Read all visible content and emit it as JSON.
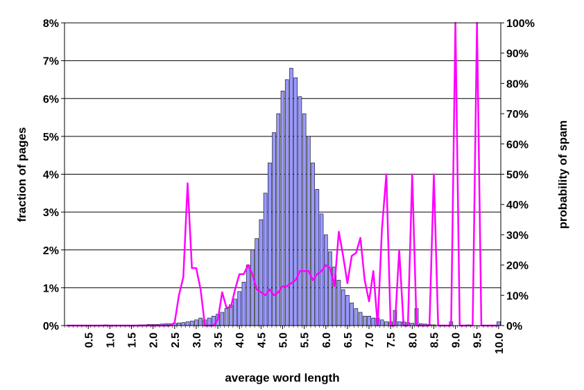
{
  "chart_data": {
    "type": "bar",
    "title": "",
    "xlabel": "average word length",
    "ylabel": "fraction of pages",
    "ylabel_right": "probability of spam",
    "ylim": [
      0,
      8
    ],
    "ylim_right": [
      0,
      100
    ],
    "xlim": [
      0.0,
      10.0
    ],
    "x_step": 0.1,
    "grid": true,
    "legend": "none",
    "x_ticks": [
      "0.5",
      "1.0",
      "1.5",
      "2.0",
      "2.5",
      "3.0",
      "3.5",
      "4.0",
      "4.5",
      "5.0",
      "5.5",
      "6.0",
      "6.5",
      "7.0",
      "7.5",
      "8.0",
      "8.5",
      "9.0",
      "9.5",
      "10.0"
    ],
    "y_ticks": [
      "0%",
      "1%",
      "2%",
      "3%",
      "4%",
      "5%",
      "6%",
      "7%",
      "8%"
    ],
    "y_ticks_right": [
      "0%",
      "10%",
      "20%",
      "30%",
      "40%",
      "50%",
      "60%",
      "70%",
      "80%",
      "90%",
      "100%"
    ],
    "series": [
      {
        "kind": "bar",
        "axis": "left",
        "unit": "%",
        "color": "#9999ff",
        "x": [
          0.9,
          1.7,
          1.8,
          1.9,
          2.0,
          2.1,
          2.2,
          2.3,
          2.4,
          2.5,
          2.6,
          2.7,
          2.8,
          2.9,
          3.0,
          3.1,
          3.2,
          3.3,
          3.4,
          3.5,
          3.6,
          3.7,
          3.8,
          3.9,
          4.0,
          4.1,
          4.2,
          4.3,
          4.4,
          4.5,
          4.6,
          4.7,
          4.8,
          4.9,
          5.0,
          5.1,
          5.2,
          5.3,
          5.4,
          5.5,
          5.6,
          5.7,
          5.8,
          5.9,
          6.0,
          6.1,
          6.2,
          6.3,
          6.4,
          6.5,
          6.6,
          6.7,
          6.8,
          6.9,
          7.0,
          7.1,
          7.2,
          7.3,
          7.4,
          7.5,
          7.6,
          7.7,
          7.8,
          7.9,
          8.0,
          8.1,
          8.2,
          8.3,
          8.4,
          8.5,
          8.9,
          9.3,
          10.0
        ],
        "values": [
          0.02,
          0.02,
          0.02,
          0.03,
          0.03,
          0.03,
          0.04,
          0.05,
          0.05,
          0.06,
          0.07,
          0.08,
          0.1,
          0.12,
          0.15,
          0.2,
          0.15,
          0.2,
          0.25,
          0.3,
          0.35,
          0.45,
          0.55,
          0.7,
          0.9,
          1.15,
          1.6,
          2.0,
          2.3,
          2.8,
          3.5,
          4.3,
          5.1,
          5.6,
          6.2,
          6.5,
          6.8,
          6.55,
          6.05,
          5.6,
          5.0,
          4.3,
          3.6,
          2.95,
          2.4,
          1.95,
          1.55,
          1.2,
          0.95,
          0.8,
          0.6,
          0.45,
          0.35,
          0.25,
          0.25,
          0.2,
          0.2,
          0.15,
          0.1,
          0.1,
          0.4,
          0.1,
          0.1,
          0.08,
          0.06,
          0.45,
          0.05,
          0.04,
          0.03,
          0.02,
          0.1,
          0.02,
          0.1
        ]
      },
      {
        "kind": "line",
        "axis": "right",
        "unit": "%",
        "color": "#ff00ff",
        "x": [
          0.0,
          2.4,
          2.5,
          2.6,
          2.7,
          2.8,
          2.9,
          3.0,
          3.1,
          3.2,
          3.3,
          3.4,
          3.5,
          3.6,
          3.7,
          3.8,
          3.9,
          4.0,
          4.1,
          4.2,
          4.3,
          4.4,
          4.5,
          4.6,
          4.7,
          4.8,
          4.9,
          5.0,
          5.1,
          5.2,
          5.3,
          5.4,
          5.5,
          5.6,
          5.7,
          5.8,
          5.9,
          6.0,
          6.1,
          6.2,
          6.3,
          6.4,
          6.5,
          6.6,
          6.7,
          6.8,
          6.9,
          7.0,
          7.1,
          7.2,
          7.3,
          7.4,
          7.5,
          7.6,
          7.7,
          7.8,
          7.9,
          8.0,
          8.1,
          8.2,
          8.3,
          8.4,
          8.5,
          8.6,
          8.7,
          8.8,
          8.9,
          9.0,
          9.1,
          9.2,
          9.3,
          9.4,
          9.5,
          9.6,
          9.7,
          9.8,
          9.9,
          10.0
        ],
        "values": [
          0,
          0,
          1,
          10,
          16,
          47,
          19,
          19,
          12,
          0,
          0,
          0,
          2,
          11,
          6,
          6,
          12,
          17,
          17,
          20,
          17,
          12,
          11,
          10,
          12,
          10,
          11,
          13,
          13,
          14,
          15,
          18,
          18,
          18,
          15,
          17,
          18,
          20,
          19,
          13,
          31,
          23,
          14,
          23,
          24,
          29,
          15,
          8,
          18,
          0,
          32,
          50,
          0,
          0,
          25,
          0,
          0,
          50,
          0,
          0,
          0,
          0,
          50,
          0,
          0,
          0,
          0,
          100,
          0,
          0,
          0,
          0,
          100,
          0,
          0,
          0,
          0,
          0
        ]
      }
    ]
  }
}
